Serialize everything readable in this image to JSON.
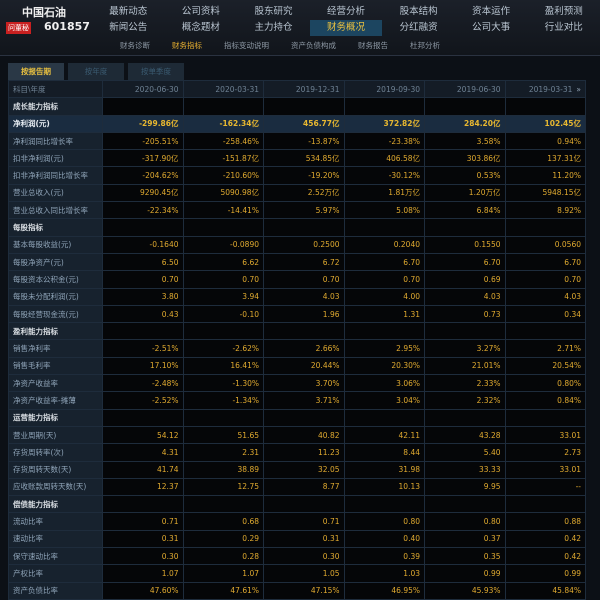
{
  "stock": {
    "name": "中国石油",
    "badge": "问董秘",
    "code": "601857"
  },
  "nav_row1": [
    "最新动态",
    "公司资料",
    "股东研究",
    "经营分析",
    "股本结构",
    "资本运作",
    "盈利预测"
  ],
  "nav_row2": [
    "新闻公告",
    "概念题材",
    "主力持仓",
    "财务概况",
    "分红融资",
    "公司大事",
    "行业对比"
  ],
  "nav_active": "财务概况",
  "subnav": [
    "财务诊断",
    "财务指标",
    "指标变动说明",
    "资产负债构成",
    "财务报告",
    "杜邦分析"
  ],
  "subnav_active": "财务指标",
  "tabs": [
    "按报告期",
    "按年度",
    "按单季度"
  ],
  "table": {
    "header": "科目\\年度",
    "more_icon": "double-chevron-right-icon",
    "columns": [
      "2020-06-30",
      "2020-03-31",
      "2019-12-31",
      "2019-09-30",
      "2019-06-30",
      "2019-03-31"
    ],
    "rows": [
      {
        "label": "成长能力指标",
        "section": true
      },
      {
        "label": "净利润(元)",
        "highlight": true,
        "values": [
          "-299.86亿",
          "-162.34亿",
          "456.77亿",
          "372.82亿",
          "284.20亿",
          "102.45亿"
        ]
      },
      {
        "label": "净利润同比增长率",
        "values": [
          "-205.51%",
          "-258.46%",
          "-13.87%",
          "-23.38%",
          "3.58%",
          "0.94%"
        ]
      },
      {
        "label": "扣非净利润(元)",
        "values": [
          "-317.90亿",
          "-151.87亿",
          "534.85亿",
          "406.58亿",
          "303.86亿",
          "137.31亿"
        ]
      },
      {
        "label": "扣非净利润同比增长率",
        "values": [
          "-204.62%",
          "-210.60%",
          "-19.20%",
          "-30.12%",
          "0.53%",
          "11.20%"
        ]
      },
      {
        "label": "营业总收入(元)",
        "values": [
          "9290.45亿",
          "5090.98亿",
          "2.52万亿",
          "1.81万亿",
          "1.20万亿",
          "5948.15亿"
        ]
      },
      {
        "label": "营业总收入同比增长率",
        "values": [
          "-22.34%",
          "-14.41%",
          "5.97%",
          "5.08%",
          "6.84%",
          "8.92%"
        ]
      },
      {
        "label": "每股指标",
        "section": true
      },
      {
        "label": "基本每股收益(元)",
        "values": [
          "-0.1640",
          "-0.0890",
          "0.2500",
          "0.2040",
          "0.1550",
          "0.0560"
        ]
      },
      {
        "label": "每股净资产(元)",
        "values": [
          "6.50",
          "6.62",
          "6.72",
          "6.70",
          "6.70",
          "6.70"
        ]
      },
      {
        "label": "每股资本公积金(元)",
        "values": [
          "0.70",
          "0.70",
          "0.70",
          "0.70",
          "0.69",
          "0.70"
        ]
      },
      {
        "label": "每股未分配利润(元)",
        "values": [
          "3.80",
          "3.94",
          "4.03",
          "4.00",
          "4.03",
          "4.03"
        ]
      },
      {
        "label": "每股经营现金流(元)",
        "values": [
          "0.43",
          "-0.10",
          "1.96",
          "1.31",
          "0.73",
          "0.34"
        ]
      },
      {
        "label": "盈利能力指标",
        "section": true
      },
      {
        "label": "销售净利率",
        "values": [
          "-2.51%",
          "-2.62%",
          "2.66%",
          "2.95%",
          "3.27%",
          "2.71%"
        ]
      },
      {
        "label": "销售毛利率",
        "values": [
          "17.10%",
          "16.41%",
          "20.44%",
          "20.30%",
          "21.01%",
          "20.54%"
        ]
      },
      {
        "label": "净资产收益率",
        "values": [
          "-2.48%",
          "-1.30%",
          "3.70%",
          "3.06%",
          "2.33%",
          "0.80%"
        ]
      },
      {
        "label": "净资产收益率-摊薄",
        "values": [
          "-2.52%",
          "-1.34%",
          "3.71%",
          "3.04%",
          "2.32%",
          "0.84%"
        ]
      },
      {
        "label": "运营能力指标",
        "section": true
      },
      {
        "label": "营业周期(天)",
        "values": [
          "54.12",
          "51.65",
          "40.82",
          "42.11",
          "43.28",
          "33.01"
        ]
      },
      {
        "label": "存货周转率(次)",
        "values": [
          "4.31",
          "2.31",
          "11.23",
          "8.44",
          "5.40",
          "2.73"
        ]
      },
      {
        "label": "存货周转天数(天)",
        "values": [
          "41.74",
          "38.89",
          "32.05",
          "31.98",
          "33.33",
          "33.01"
        ]
      },
      {
        "label": "应收账款周转天数(天)",
        "values": [
          "12.37",
          "12.75",
          "8.77",
          "10.13",
          "9.95",
          "--"
        ]
      },
      {
        "label": "偿债能力指标",
        "section": true
      },
      {
        "label": "流动比率",
        "values": [
          "0.71",
          "0.68",
          "0.71",
          "0.80",
          "0.80",
          "0.88"
        ]
      },
      {
        "label": "速动比率",
        "values": [
          "0.31",
          "0.29",
          "0.31",
          "0.40",
          "0.37",
          "0.42"
        ]
      },
      {
        "label": "保守速动比率",
        "values": [
          "0.30",
          "0.28",
          "0.30",
          "0.39",
          "0.35",
          "0.42"
        ]
      },
      {
        "label": "产权比率",
        "values": [
          "1.07",
          "1.07",
          "1.05",
          "1.03",
          "0.99",
          "0.99"
        ]
      },
      {
        "label": "资产负债比率",
        "values": [
          "47.60%",
          "47.61%",
          "47.15%",
          "46.95%",
          "45.93%",
          "45.84%"
        ]
      }
    ]
  }
}
